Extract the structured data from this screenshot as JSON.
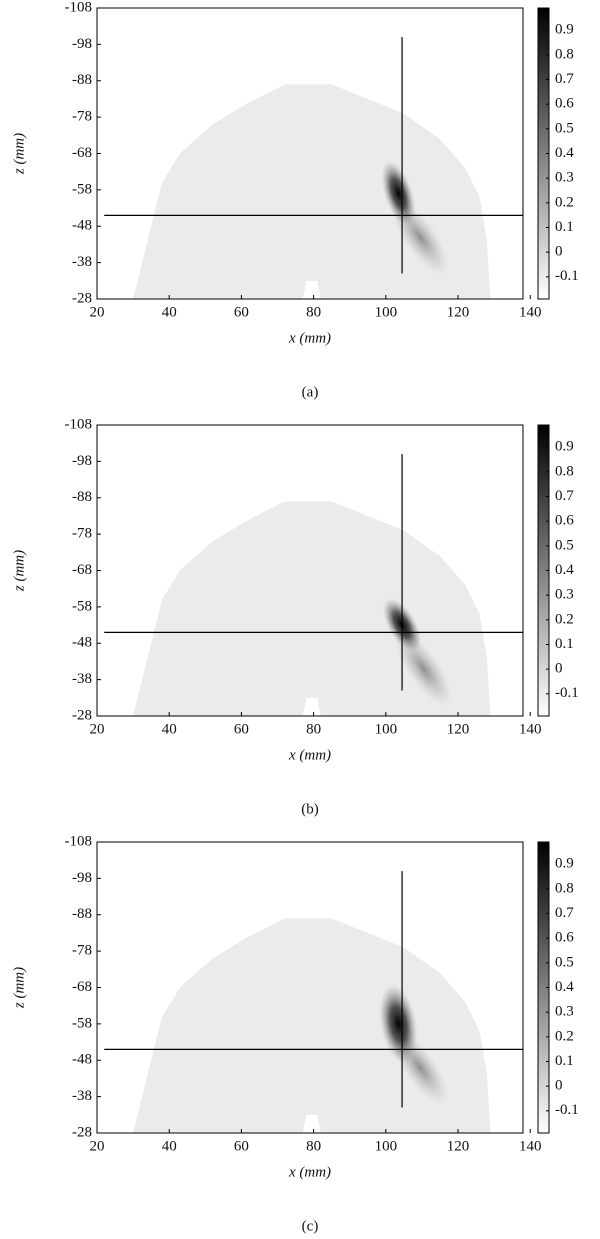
{
  "chart_data": [
    {
      "type": "heatmap",
      "caption": "(a)",
      "xlabel": "x (mm)",
      "ylabel": "z (mm)",
      "xlim": [
        20,
        138
      ],
      "ylim": [
        -28,
        -108
      ],
      "xticks": [
        20,
        40,
        60,
        80,
        100,
        120,
        140
      ],
      "yticks": [
        -108,
        -98,
        -88,
        -78,
        -68,
        -58,
        -48,
        -38,
        -28
      ],
      "clim": [
        -0.19,
        0.99
      ],
      "cticks": [
        -0.1,
        0,
        0.1,
        0.2,
        0.3,
        0.4,
        0.5,
        0.6,
        0.7,
        0.8,
        0.9
      ],
      "crosshair": {
        "x": 104.5,
        "y": -51,
        "x_extent": [
          22,
          138
        ],
        "y_extent": [
          -100,
          -35
        ]
      }
    },
    {
      "type": "heatmap",
      "caption": "(b)",
      "xlabel": "x (mm)",
      "ylabel": "z (mm)",
      "xlim": [
        20,
        138
      ],
      "ylim": [
        -28,
        -108
      ],
      "xticks": [
        20,
        40,
        60,
        80,
        100,
        120,
        140
      ],
      "yticks": [
        -108,
        -98,
        -88,
        -78,
        -68,
        -58,
        -48,
        -38,
        -28
      ],
      "clim": [
        -0.19,
        0.99
      ],
      "cticks": [
        -0.1,
        0,
        0.1,
        0.2,
        0.3,
        0.4,
        0.5,
        0.6,
        0.7,
        0.8,
        0.9
      ],
      "crosshair": {
        "x": 104.5,
        "y": -51,
        "x_extent": [
          22,
          138
        ],
        "y_extent": [
          -100,
          -35
        ]
      }
    },
    {
      "type": "heatmap",
      "caption": "(c)",
      "xlabel": "x (mm)",
      "ylabel": "z (mm)",
      "xlim": [
        20,
        138
      ],
      "ylim": [
        -28,
        -108
      ],
      "xticks": [
        20,
        40,
        60,
        80,
        100,
        120,
        140
      ],
      "yticks": [
        -108,
        -98,
        -88,
        -78,
        -68,
        -58,
        -48,
        -38,
        -28
      ],
      "clim": [
        -0.19,
        0.99
      ],
      "cticks": [
        -0.1,
        0,
        0.1,
        0.2,
        0.3,
        0.4,
        0.5,
        0.6,
        0.7,
        0.8,
        0.9
      ],
      "crosshair": {
        "x": 104.5,
        "y": -51,
        "x_extent": [
          22,
          138
        ],
        "y_extent": [
          -100,
          -35
        ]
      }
    }
  ]
}
